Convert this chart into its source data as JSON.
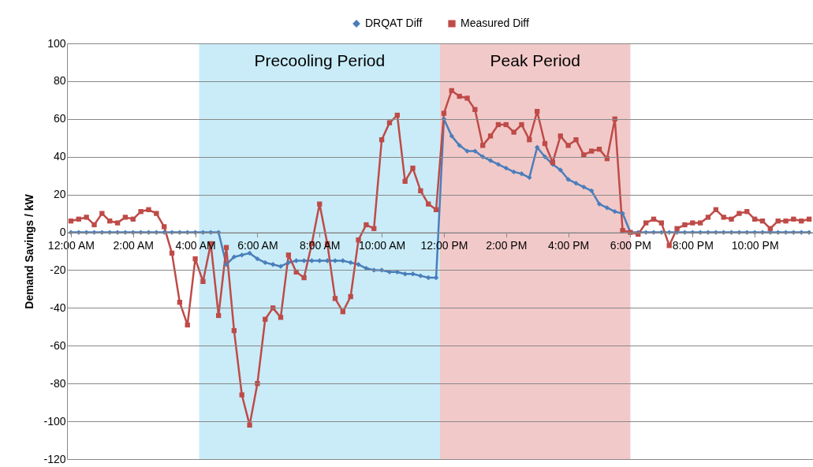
{
  "chart_data": {
    "type": "line",
    "ylabel": "Demand Savings / kW",
    "x": [
      0,
      0.25,
      0.5,
      0.75,
      1,
      1.25,
      1.5,
      1.75,
      2,
      2.25,
      2.5,
      2.75,
      3,
      3.25,
      3.5,
      3.75,
      4,
      4.25,
      4.5,
      4.75,
      5,
      5.25,
      5.5,
      5.75,
      6,
      6.25,
      6.5,
      6.75,
      7,
      7.25,
      7.5,
      7.75,
      8,
      8.25,
      8.5,
      8.75,
      9,
      9.25,
      9.5,
      9.75,
      10,
      10.25,
      10.5,
      10.75,
      11,
      11.25,
      11.5,
      11.75,
      12,
      12.25,
      12.5,
      12.75,
      13,
      13.25,
      13.5,
      13.75,
      14,
      14.25,
      14.5,
      14.75,
      15,
      15.25,
      15.5,
      15.75,
      16,
      16.25,
      16.5,
      16.75,
      17,
      17.25,
      17.5,
      17.75,
      18,
      18.25,
      18.5,
      18.75,
      19,
      19.25,
      19.5,
      19.75,
      20,
      20.25,
      20.5,
      20.75,
      21,
      21.25,
      21.5,
      21.75,
      22,
      22.25,
      22.5,
      22.75,
      23,
      23.25,
      23.5,
      23.75
    ],
    "series": [
      {
        "name": "DRQAT Diff",
        "color": "#4a7ebb",
        "marker": "diamond",
        "values": [
          0,
          0,
          0,
          0,
          0,
          0,
          0,
          0,
          0,
          0,
          0,
          0,
          0,
          0,
          0,
          0,
          0,
          0,
          0,
          0,
          -17,
          -13,
          -12,
          -11,
          -14,
          -16,
          -17,
          -18,
          -16,
          -15,
          -15,
          -15,
          -15,
          -15,
          -15,
          -15,
          -16,
          -17,
          -19,
          -20,
          -20,
          -21,
          -21,
          -22,
          -22,
          -23,
          -24,
          -24,
          60,
          51,
          46,
          43,
          43,
          40,
          38,
          36,
          34,
          32,
          31,
          29,
          45,
          40,
          36,
          33,
          28,
          26,
          24,
          22,
          15,
          13,
          11,
          10,
          0,
          0,
          0,
          0,
          0,
          0,
          0,
          0,
          0,
          0,
          0,
          0,
          0,
          0,
          0,
          0,
          0,
          0,
          0,
          0,
          0,
          0,
          0,
          0
        ]
      },
      {
        "name": "Measured Diff",
        "color": "#be4b48",
        "marker": "square",
        "values": [
          6,
          7,
          8,
          4,
          10,
          6,
          5,
          8,
          7,
          11,
          12,
          10,
          3,
          -11,
          -37,
          -49,
          -14,
          -26,
          -6,
          -44,
          -8,
          -52,
          -86,
          -102,
          -80,
          -46,
          -40,
          -45,
          -12,
          -21,
          -24,
          -6,
          15,
          -6,
          -35,
          -42,
          -34,
          -4,
          4,
          2,
          49,
          58,
          62,
          27,
          34,
          22,
          15,
          12,
          63,
          75,
          72,
          71,
          65,
          46,
          51,
          57,
          57,
          53,
          57,
          49,
          64,
          47,
          37,
          51,
          46,
          49,
          41,
          43,
          44,
          39,
          60,
          1,
          0,
          -1,
          5,
          7,
          5,
          -7,
          2,
          4,
          5,
          5,
          8,
          12,
          8,
          7,
          10,
          11,
          7,
          6,
          2,
          6,
          6,
          7,
          6,
          7
        ]
      }
    ],
    "xlim": [
      -0.125,
      23.875
    ],
    "xticks": [
      {
        "value": 0,
        "label": "12:00 AM"
      },
      {
        "value": 2,
        "label": "2:00 AM"
      },
      {
        "value": 4,
        "label": "4:00 AM"
      },
      {
        "value": 6,
        "label": "6:00 AM"
      },
      {
        "value": 8,
        "label": "8:00 AM"
      },
      {
        "value": 10,
        "label": "10:00 AM"
      },
      {
        "value": 12,
        "label": "12:00 PM"
      },
      {
        "value": 14,
        "label": "2:00 PM"
      },
      {
        "value": 16,
        "label": "4:00 PM"
      },
      {
        "value": 18,
        "label": "6:00 PM"
      },
      {
        "value": 20,
        "label": "8:00 PM"
      },
      {
        "value": 22,
        "label": "10:00 PM"
      }
    ],
    "ylim": [
      -120,
      100
    ],
    "yticks": [
      -120,
      -100,
      -80,
      -60,
      -40,
      -20,
      0,
      20,
      40,
      60,
      80,
      100
    ],
    "bands": [
      {
        "axis": "x",
        "from": 4.125,
        "to": 11.875,
        "label": "Precooling Period",
        "color": "#c9ecf8"
      },
      {
        "axis": "x",
        "from": 11.875,
        "to": 18,
        "label": "Peak Period",
        "color": "#f2c9c9"
      }
    ],
    "grid": "y",
    "legend": "top",
    "line_style": "solid"
  }
}
